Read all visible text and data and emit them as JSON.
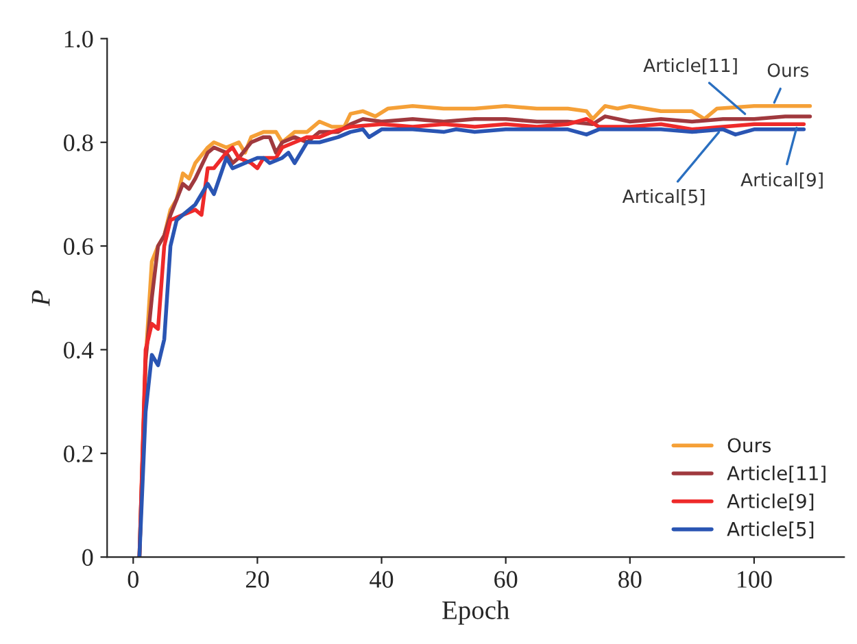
{
  "chart_data": {
    "type": "line",
    "xlabel": "Epoch",
    "ylabel": "P",
    "xlim": [
      -4.2,
      114.5
    ],
    "ylim": [
      0,
      1.0
    ],
    "xticks": [
      0,
      20,
      40,
      60,
      80,
      100
    ],
    "yticks": [
      {
        "value": 0,
        "label": "0"
      },
      0.2,
      0.4,
      0.6,
      0.8,
      {
        "value": 1.0,
        "label": "1.0"
      }
    ],
    "grid": false,
    "legend": "bottom right",
    "line_style": "solid",
    "marker": "none",
    "series": [
      {
        "name": "Ours",
        "color": "#f5a037",
        "x": [
          1,
          2,
          3,
          4,
          5,
          6,
          7,
          8,
          9,
          10,
          12,
          13,
          15,
          17,
          18,
          19,
          21,
          23,
          24,
          26,
          28,
          30,
          32,
          34,
          35,
          37,
          39,
          41,
          45,
          50,
          55,
          60,
          65,
          70,
          73,
          74,
          76,
          78,
          80,
          85,
          90,
          92,
          94,
          100,
          105,
          109
        ],
        "values": [
          0,
          0.38,
          0.57,
          0.6,
          0.62,
          0.67,
          0.69,
          0.74,
          0.73,
          0.76,
          0.79,
          0.8,
          0.79,
          0.8,
          0.78,
          0.81,
          0.82,
          0.82,
          0.8,
          0.82,
          0.82,
          0.84,
          0.83,
          0.83,
          0.855,
          0.86,
          0.85,
          0.865,
          0.87,
          0.865,
          0.865,
          0.87,
          0.865,
          0.865,
          0.86,
          0.845,
          0.87,
          0.865,
          0.87,
          0.86,
          0.86,
          0.845,
          0.865,
          0.87,
          0.87,
          0.87
        ]
      },
      {
        "name": "Article[11]",
        "color": "#a0393e",
        "x": [
          1,
          2,
          3,
          4,
          5,
          6,
          8,
          9,
          10,
          12,
          13,
          15,
          16,
          17,
          19,
          21,
          22,
          23,
          24,
          26,
          28,
          30,
          33,
          35,
          37,
          40,
          45,
          50,
          55,
          60,
          65,
          70,
          74,
          76,
          80,
          85,
          90,
          95,
          100,
          105,
          109
        ],
        "values": [
          0,
          0.38,
          0.5,
          0.6,
          0.62,
          0.66,
          0.72,
          0.71,
          0.73,
          0.78,
          0.79,
          0.78,
          0.76,
          0.77,
          0.8,
          0.81,
          0.81,
          0.78,
          0.8,
          0.81,
          0.8,
          0.82,
          0.82,
          0.835,
          0.845,
          0.84,
          0.845,
          0.84,
          0.845,
          0.845,
          0.84,
          0.84,
          0.835,
          0.85,
          0.84,
          0.845,
          0.84,
          0.845,
          0.845,
          0.85,
          0.85
        ]
      },
      {
        "name": "Article[9]",
        "color": "#ee2a2a",
        "x": [
          1,
          2,
          3,
          4,
          5,
          6,
          8,
          10,
          11,
          12,
          13,
          15,
          16,
          17,
          19,
          20,
          21,
          23,
          24,
          26,
          28,
          30,
          32,
          35,
          40,
          45,
          50,
          55,
          60,
          65,
          70,
          73,
          75,
          80,
          85,
          90,
          95,
          100,
          105,
          108
        ],
        "values": [
          0,
          0.4,
          0.45,
          0.44,
          0.6,
          0.65,
          0.66,
          0.67,
          0.66,
          0.75,
          0.75,
          0.78,
          0.79,
          0.77,
          0.76,
          0.75,
          0.77,
          0.77,
          0.79,
          0.8,
          0.81,
          0.81,
          0.82,
          0.83,
          0.835,
          0.83,
          0.835,
          0.83,
          0.835,
          0.83,
          0.835,
          0.845,
          0.83,
          0.83,
          0.835,
          0.825,
          0.83,
          0.835,
          0.835,
          0.835
        ]
      },
      {
        "name": "Article[5]",
        "color": "#2a55b3",
        "x": [
          1,
          2,
          3,
          4,
          5,
          6,
          7,
          8,
          10,
          12,
          13,
          15,
          16,
          18,
          20,
          21,
          22,
          24,
          25,
          26,
          28,
          30,
          33,
          35,
          37,
          38,
          40,
          45,
          50,
          52,
          55,
          60,
          65,
          70,
          73,
          75,
          80,
          85,
          90,
          95,
          97,
          100,
          105,
          108
        ],
        "values": [
          0,
          0.28,
          0.39,
          0.37,
          0.42,
          0.6,
          0.65,
          0.66,
          0.68,
          0.72,
          0.7,
          0.77,
          0.75,
          0.76,
          0.77,
          0.77,
          0.76,
          0.77,
          0.78,
          0.76,
          0.8,
          0.8,
          0.81,
          0.82,
          0.825,
          0.81,
          0.825,
          0.825,
          0.82,
          0.825,
          0.82,
          0.825,
          0.825,
          0.825,
          0.815,
          0.825,
          0.825,
          0.825,
          0.82,
          0.825,
          0.815,
          0.825,
          0.825,
          0.825
        ]
      }
    ],
    "annotations": [
      {
        "text": "Ours",
        "x": 103,
        "y": 0.87
      },
      {
        "text": "Article[11]",
        "x": 99,
        "y": 0.85
      },
      {
        "text": "Artical[5]",
        "x": 94.7,
        "y": 0.825
      },
      {
        "text": "Artical[9]",
        "x": 107,
        "y": 0.835
      }
    ]
  }
}
